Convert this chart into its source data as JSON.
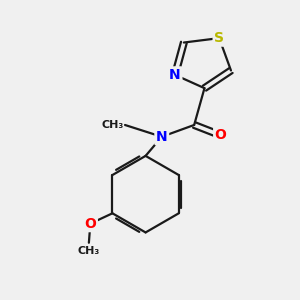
{
  "background_color": "#f0f0f0",
  "bond_color": "#1a1a1a",
  "S_color": "#b8b800",
  "N_color": "#0000ff",
  "O_color": "#ff0000",
  "C_color": "#1a1a1a",
  "bond_width": 1.6,
  "font_size_atoms": 10,
  "font_size_methyl": 8,
  "xlim": [
    0,
    10
  ],
  "ylim": [
    0,
    10
  ]
}
